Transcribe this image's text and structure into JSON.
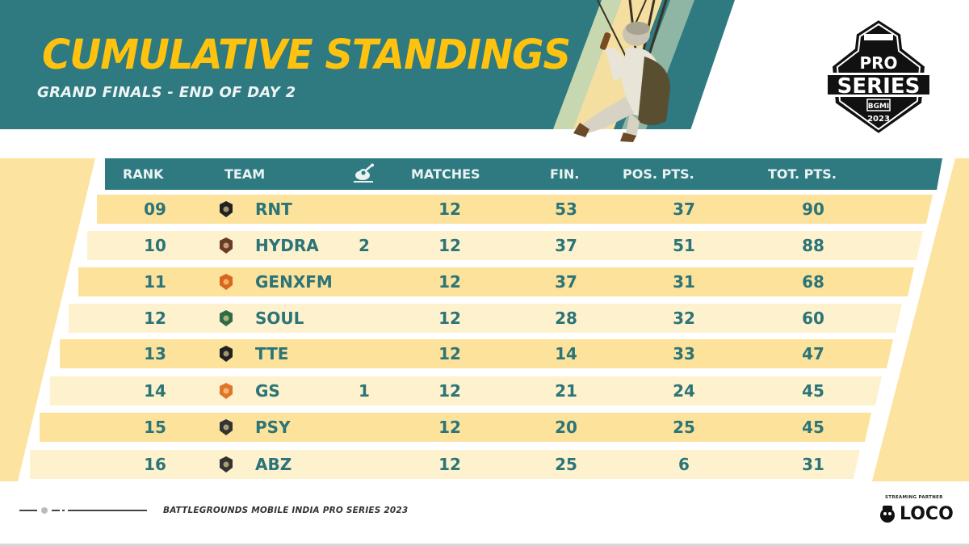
{
  "header": {
    "title": "CUMULATIVE STANDINGS",
    "subtitle": "GRAND FINALS - END OF DAY 2"
  },
  "logo": {
    "line1": "PRO",
    "line2": "SERIES",
    "badge": "BGMI",
    "year": "2023"
  },
  "table": {
    "columns": {
      "rank": "RANK",
      "team": "TEAM",
      "chicken_icon": "chicken-dinner-icon",
      "matches": "MATCHES",
      "fin": "FIN.",
      "pos_pts": "POS. PTS.",
      "tot_pts": "TOT. PTS."
    },
    "rows": [
      {
        "rank": "09",
        "team": "RNT",
        "wwcd": "",
        "matches": "12",
        "fin": "53",
        "pos_pts": "37",
        "tot_pts": "90",
        "logo_color": "#222222"
      },
      {
        "rank": "10",
        "team": "HYDRA",
        "wwcd": "2",
        "matches": "12",
        "fin": "37",
        "pos_pts": "51",
        "tot_pts": "88",
        "logo_color": "#6b3b2a"
      },
      {
        "rank": "11",
        "team": "GENXFM",
        "wwcd": "",
        "matches": "12",
        "fin": "37",
        "pos_pts": "31",
        "tot_pts": "68",
        "logo_color": "#d9661c"
      },
      {
        "rank": "12",
        "team": "SOUL",
        "wwcd": "",
        "matches": "12",
        "fin": "28",
        "pos_pts": "32",
        "tot_pts": "60",
        "logo_color": "#2f6b4a"
      },
      {
        "rank": "13",
        "team": "TTE",
        "wwcd": "",
        "matches": "12",
        "fin": "14",
        "pos_pts": "33",
        "tot_pts": "47",
        "logo_color": "#222222"
      },
      {
        "rank": "14",
        "team": "GS",
        "wwcd": "1",
        "matches": "12",
        "fin": "21",
        "pos_pts": "24",
        "tot_pts": "45",
        "logo_color": "#e0752a"
      },
      {
        "rank": "15",
        "team": "PSY",
        "wwcd": "",
        "matches": "12",
        "fin": "20",
        "pos_pts": "25",
        "tot_pts": "45",
        "logo_color": "#333333"
      },
      {
        "rank": "16",
        "team": "ABZ",
        "wwcd": "",
        "matches": "12",
        "fin": "25",
        "pos_pts": "6",
        "tot_pts": "31",
        "logo_color": "#333333"
      }
    ]
  },
  "footer": {
    "text": "BATTLEGROUNDS MOBILE INDIA PRO SERIES 2023",
    "partner_label": "STREAMING PARTNER",
    "partner_name": "LOCO"
  },
  "colors": {
    "teal": "#2e7a80",
    "title_yellow": "#ffc20e",
    "row_dark": "#fde29c",
    "row_light": "#fef1cd",
    "text_teal": "#2b7478"
  }
}
